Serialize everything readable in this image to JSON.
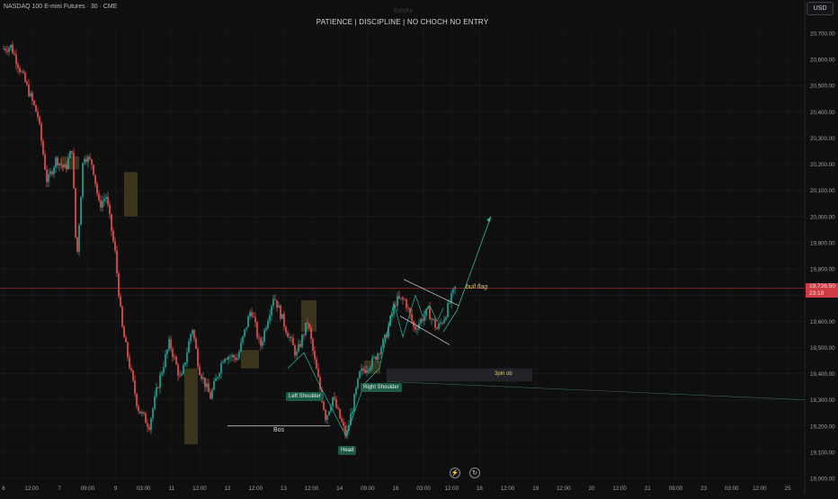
{
  "header": {
    "symbol_title": "NASDAQ 100 E-mini Futures · 30 · CME",
    "watermark": "EzicFx"
  },
  "tagline": "PATIENCE  |  DISCIPLINE  |  NO CHOCH NO ENTRY",
  "currency_button": "USD",
  "last_price": {
    "value": "19,726.50",
    "countdown": "23:18"
  },
  "annotations": {
    "left_shoulder": "Left Shoulder",
    "head": "Head",
    "right_shoulder": "Right Shoulder",
    "bos": "Bos",
    "bull_flag": "bull flag",
    "order_block": "3pin ob"
  },
  "bottom_icons": [
    {
      "name": "lightning-icon",
      "glyph": "⚡"
    },
    {
      "name": "replay-icon",
      "glyph": "↻"
    }
  ],
  "colors": {
    "up": "#26a69a",
    "down": "#ef5350",
    "background": "#0f0f10",
    "grid": "#1c1d21",
    "price_line": "#d03a44",
    "pattern": "#2fb89a",
    "zone": "#4a4220"
  },
  "chart_data": {
    "type": "candlestick",
    "title": "NASDAQ 100 E-mini Futures · 30 · CME",
    "y_ticks": [
      "20,700.00",
      "20,600.00",
      "20,500.00",
      "20,400.00",
      "20,300.00",
      "20,200.00",
      "20,100.00",
      "20,000.00",
      "19,900.00",
      "19,800.00",
      "19,700.00",
      "19,600.00",
      "19,500.00",
      "19,400.00",
      "19,300.00",
      "19,200.00",
      "19,100.00",
      "19,000.00"
    ],
    "y_range": [
      18980,
      20740
    ],
    "x_ticks": [
      "6",
      "12:00",
      "7",
      "09:00",
      "9",
      "03:00",
      "11",
      "12:00",
      "12",
      "12:00",
      "13",
      "12:00",
      "14",
      "09:00",
      "16",
      "03:00",
      "12:00",
      "18",
      "12:00",
      "19",
      "12:00",
      "20",
      "12:00",
      "21",
      "09:00",
      "23",
      "03:00",
      "12:00",
      "25"
    ],
    "last_price": 19726.5,
    "price_path": [
      [
        0,
        20640
      ],
      [
        0.02,
        20650
      ],
      [
        0.05,
        20520
      ],
      [
        0.08,
        20380
      ],
      [
        0.1,
        20130
      ],
      [
        0.12,
        20220
      ],
      [
        0.14,
        20180
      ],
      [
        0.155,
        20260
      ],
      [
        0.165,
        19820
      ],
      [
        0.18,
        20240
      ],
      [
        0.2,
        20200
      ],
      [
        0.215,
        20040
      ],
      [
        0.23,
        20080
      ],
      [
        0.25,
        19860
      ],
      [
        0.265,
        19580
      ],
      [
        0.3,
        19270
      ],
      [
        0.325,
        19200
      ],
      [
        0.345,
        19360
      ],
      [
        0.37,
        19520
      ],
      [
        0.395,
        19370
      ],
      [
        0.42,
        19580
      ],
      [
        0.435,
        19420
      ],
      [
        0.46,
        19310
      ],
      [
        0.49,
        19470
      ],
      [
        0.52,
        19460
      ],
      [
        0.55,
        19650
      ],
      [
        0.57,
        19500
      ],
      [
        0.6,
        19700
      ],
      [
        0.625,
        19580
      ],
      [
        0.65,
        19470
      ],
      [
        0.675,
        19600
      ],
      [
        0.69,
        19450
      ],
      [
        0.715,
        19230
      ],
      [
        0.73,
        19310
      ],
      [
        0.76,
        19160
      ],
      [
        0.79,
        19400
      ],
      [
        0.82,
        19450
      ],
      [
        0.845,
        19530
      ],
      [
        0.87,
        19680
      ],
      [
        0.89,
        19680
      ],
      [
        0.91,
        19570
      ],
      [
        0.94,
        19640
      ],
      [
        0.96,
        19570
      ],
      [
        0.975,
        19610
      ],
      [
        0.99,
        19680
      ],
      [
        1,
        19726.5
      ]
    ],
    "head_and_shoulders": {
      "left_shoulder": 19380,
      "head": 19160,
      "right_shoulder": 19360
    },
    "bos_level": 19200,
    "order_block": [
      19370,
      19420
    ],
    "bull_flag_projection_target": 20000
  }
}
